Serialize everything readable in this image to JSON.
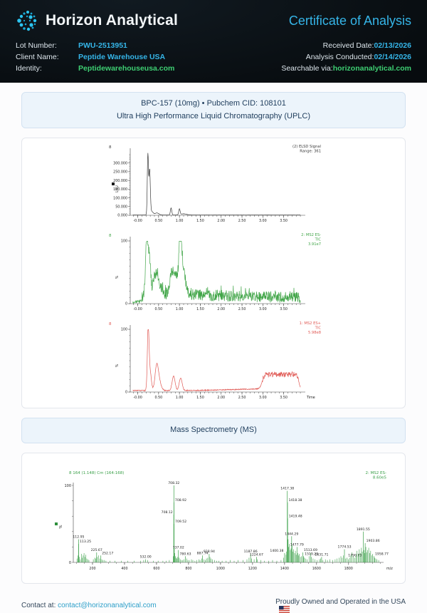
{
  "colors": {
    "cyan": "#35b5e8",
    "green": "#3ecf73",
    "card-bg": "#ecf4fb",
    "card-border": "#d3e2f1",
    "card-text": "#22405f",
    "panel-border": "#e3e6ec",
    "link": "#2d9fc9"
  },
  "header": {
    "brand": "Horizon Analytical",
    "title": "Certificate of Analysis",
    "fields_left": [
      {
        "label": "Lot Number:",
        "value": "PWU-2513951"
      },
      {
        "label": "Client Name:",
        "value": "Peptide Warehouse USA"
      },
      {
        "label": "Identity:",
        "value": "Peptidewarehouseusa.com"
      }
    ],
    "fields_right": [
      {
        "label": "Received Date:",
        "value": "02/13/2026"
      },
      {
        "label": "Analysis Conducted:",
        "value": "02/14/2026"
      },
      {
        "label": "Searchable via:",
        "value": "horizonanalytical.com"
      }
    ]
  },
  "sample_card": {
    "line1": "BPC-157 (10mg) • Pubchem CID: 108101",
    "line2": "Ultra High Performance Liquid Chromatography (UPLC)"
  },
  "ms_section_title": "Mass Spectrometry (MS)",
  "footer": {
    "contact_label": "Contact at:",
    "contact_link": "contact@horizonanalytical.com",
    "right_text": "Proudly Owned and Operated in the USA"
  },
  "chart_data": [
    {
      "type": "line",
      "id": "elsd",
      "run_label": "8",
      "title_right": [
        "(2) ELSD Signal",
        "Range: 361"
      ],
      "color": "#3a3a3a",
      "ylabel": "LSU",
      "marker_square": "#1a1a1a",
      "ymax": 360000,
      "y_tick_vals": [
        0,
        50000,
        100000,
        150000,
        200000,
        250000,
        300000
      ],
      "y_tick_labels": [
        "0.000",
        "50.000",
        "100.000",
        "150.000",
        "200.000",
        "250.000",
        "300.000"
      ],
      "y_minor_step": 10000,
      "x_range": [
        -0.18,
        3.95
      ],
      "x_tick_vals": [
        0,
        0.5,
        1,
        1.5,
        2,
        2.5,
        3,
        3.5
      ],
      "x_ticks": [
        "-0.00",
        "0.50",
        "1.00",
        "1.50",
        "2.00",
        "2.50",
        "3.00",
        "3.50"
      ],
      "peaks": [
        [
          0.243,
          345000,
          0.014
        ],
        [
          0.285,
          250000,
          0.016
        ],
        [
          0.325,
          22000,
          0.04
        ],
        [
          0.46,
          12000,
          0.045
        ],
        [
          0.8,
          41000,
          0.016
        ],
        [
          1.0,
          34000,
          0.016
        ],
        [
          1.1,
          7000,
          0.07
        ]
      ],
      "baseline": 1400,
      "noise": 700,
      "seed": 5
    },
    {
      "type": "line",
      "id": "tic_neg",
      "run_label": "8",
      "title_right": [
        "2: MS2 ES-",
        "TIC",
        "3.91e7"
      ],
      "color": "#42a649",
      "ylabel": "%",
      "ymax": 100,
      "y_tick_vals": [
        0,
        100
      ],
      "y_tick_labels": [
        "0",
        "100"
      ],
      "y_minor_step": 10,
      "x_range": [
        -0.18,
        3.95
      ],
      "x_tick_vals": [
        0,
        0.5,
        1,
        1.5,
        2,
        2.5,
        3,
        3.5
      ],
      "x_ticks": [
        "-0.00",
        "0.50",
        "1.00",
        "1.50",
        "2.00",
        "2.50",
        "3.00",
        "3.50"
      ],
      "peaks": [
        [
          0.22,
          92,
          0.03
        ],
        [
          0.285,
          50,
          0.028
        ],
        [
          0.4,
          30,
          0.035
        ],
        [
          0.47,
          28,
          0.03
        ],
        [
          0.56,
          12,
          0.04
        ],
        [
          0.83,
          38,
          0.05
        ],
        [
          0.95,
          30,
          0.04
        ],
        [
          1.01,
          78,
          0.022
        ],
        [
          1.055,
          52,
          0.03
        ],
        [
          1.12,
          25,
          0.05
        ]
      ],
      "base_floor": 3,
      "base_amp": 12,
      "base_decay": 0.2,
      "rise_t": 0.12,
      "end_t": 3.86,
      "noise": 9,
      "spike_p": 0.06,
      "spike_amp": 14,
      "seed": 99
    },
    {
      "type": "line",
      "id": "tic_pos",
      "run_label": "8",
      "title_right": [
        "1: MS2 ES+",
        "TIC",
        "5.98e8"
      ],
      "color": "#e05a55",
      "ylabel": "%",
      "ymax": 100,
      "y_tick_vals": [
        0,
        100
      ],
      "y_tick_labels": [
        "0",
        "100"
      ],
      "y_minor_step": 10,
      "x_range": [
        -0.18,
        3.95
      ],
      "x_tick_vals": [
        0,
        0.5,
        1,
        1.5,
        2,
        2.5,
        3,
        3.5
      ],
      "x_ticks": [
        "-0.00",
        "0.50",
        "1.00",
        "1.50",
        "2.00",
        "2.50",
        "3.00",
        "3.50"
      ],
      "x_end_label": "Time",
      "peaks": [
        [
          0.25,
          95,
          0.02
        ],
        [
          0.295,
          30,
          0.03
        ],
        [
          0.45,
          31,
          0.038
        ],
        [
          0.5,
          18,
          0.05
        ],
        [
          0.86,
          23,
          0.035
        ],
        [
          1.03,
          20,
          0.035
        ]
      ],
      "baseline": 2.5,
      "drift": 2.5,
      "noise": 0.8,
      "plateau": {
        "t0": 2.98,
        "t1": 3.86,
        "h": 23,
        "noise": 4
      },
      "seed": 31
    },
    {
      "type": "bar",
      "subtype": "mass-spectrum",
      "id": "ms",
      "title_left": "8 164 (1.148) Cm (164:168)",
      "title_right": [
        "2: MS2 ES-",
        "8.60e5"
      ],
      "color": "#3ba049",
      "ylabel": "%",
      "marker_square": "#2e8f3c",
      "xlabel": "m/z",
      "x_range": [
        80,
        2010
      ],
      "x_tick_vals": [
        200,
        400,
        600,
        800,
        1000,
        1200,
        1400,
        1600,
        1800
      ],
      "x_ticks": [
        "200",
        "400",
        "600",
        "800",
        "1000",
        "1200",
        "1400",
        "1600",
        "1800"
      ],
      "y_tick_labels": [
        "100",
        "0"
      ],
      "labeled_peaks": [
        {
          "m": 112.95,
          "h": 30,
          "label": "112.95",
          "a": "m"
        },
        {
          "m": 113.25,
          "h": 24,
          "label": "113.25",
          "a": "s"
        },
        {
          "m": 225.67,
          "h": 13,
          "label": "225.67",
          "a": "m"
        },
        {
          "m": 252.17,
          "h": 9,
          "label": "252.17",
          "a": "s"
        },
        {
          "m": 532.0,
          "h": 4,
          "label": "532.00",
          "a": "m"
        },
        {
          "m": 708.12,
          "h": 62,
          "label": "708.12",
          "a": "e"
        },
        {
          "m": 708.32,
          "h": 100,
          "label": "708.32",
          "a": "m"
        },
        {
          "m": 708.92,
          "h": 78,
          "label": "708.92",
          "a": "s"
        },
        {
          "m": 709.52,
          "h": 50,
          "label": "709.52",
          "a": "s"
        },
        {
          "m": 737.02,
          "h": 16,
          "label": "737.02",
          "a": "m"
        },
        {
          "m": 780.63,
          "h": 8,
          "label": "780.63",
          "a": "m"
        },
        {
          "m": 887.74,
          "h": 9,
          "label": "887.74",
          "a": "m"
        },
        {
          "m": 928.94,
          "h": 11,
          "label": "928.94",
          "a": "m"
        },
        {
          "m": 1187.86,
          "h": 11,
          "label": "1187.86",
          "a": "m"
        },
        {
          "m": 1224.67,
          "h": 7,
          "label": "1224.67",
          "a": "m"
        },
        {
          "m": 1400.38,
          "h": 12,
          "label": "1400.38",
          "a": "e"
        },
        {
          "m": 1417.38,
          "h": 93,
          "label": "1417.38",
          "a": "m"
        },
        {
          "m": 1418.38,
          "h": 78,
          "label": "1418.38",
          "a": "s"
        },
        {
          "m": 1419.48,
          "h": 57,
          "label": "1419.48",
          "a": "s"
        },
        {
          "m": 1444.29,
          "h": 34,
          "label": "1444.29",
          "a": "m"
        },
        {
          "m": 1477.79,
          "h": 20,
          "label": "1477.79",
          "a": "m"
        },
        {
          "m": 1513.69,
          "h": 13,
          "label": "1513.69",
          "a": "s"
        },
        {
          "m": 1519.29,
          "h": 8,
          "label": "1519.29",
          "a": "s"
        },
        {
          "m": 1631.71,
          "h": 7,
          "label": "1631.71",
          "a": "m"
        },
        {
          "m": 1774.53,
          "h": 17,
          "label": "1774.53",
          "a": "m"
        },
        {
          "m": 1790.73,
          "h": 6,
          "label": "1790.73",
          "a": "s"
        },
        {
          "m": 1891.55,
          "h": 40,
          "label": "1891.55",
          "a": "m"
        },
        {
          "m": 1903.86,
          "h": 25,
          "label": "1903.86",
          "a": "s"
        },
        {
          "m": 1958.77,
          "h": 8,
          "label": "1958.77",
          "a": "s"
        }
      ],
      "minor_peaks": [
        [
          103,
          5
        ],
        [
          108,
          9
        ],
        [
          118,
          7
        ],
        [
          124,
          4
        ],
        [
          131,
          11
        ],
        [
          136,
          6
        ],
        [
          142,
          9
        ],
        [
          147,
          12
        ],
        [
          152,
          7
        ],
        [
          158,
          10
        ],
        [
          164,
          5
        ],
        [
          171,
          4
        ],
        [
          178,
          3
        ],
        [
          205,
          4
        ],
        [
          214,
          6
        ],
        [
          221,
          5
        ],
        [
          230,
          7
        ],
        [
          238,
          9
        ],
        [
          245,
          5
        ],
        [
          258,
          4
        ],
        [
          266,
          3
        ],
        [
          275,
          3
        ],
        [
          284,
          2
        ],
        [
          310,
          2
        ],
        [
          340,
          2
        ],
        [
          380,
          2
        ],
        [
          420,
          2
        ],
        [
          460,
          2
        ],
        [
          500,
          2
        ],
        [
          520,
          3
        ],
        [
          545,
          3
        ],
        [
          580,
          2
        ],
        [
          610,
          2
        ],
        [
          640,
          2
        ],
        [
          660,
          2
        ],
        [
          680,
          3
        ],
        [
          704,
          8
        ],
        [
          711,
          20
        ],
        [
          714,
          12
        ],
        [
          718,
          8
        ],
        [
          722,
          6
        ],
        [
          728,
          5
        ],
        [
          733,
          7
        ],
        [
          742,
          6
        ],
        [
          748,
          4
        ],
        [
          756,
          3
        ],
        [
          764,
          3
        ],
        [
          772,
          4
        ],
        [
          788,
          5
        ],
        [
          796,
          3
        ],
        [
          805,
          3
        ],
        [
          818,
          4
        ],
        [
          827,
          3
        ],
        [
          840,
          2
        ],
        [
          852,
          3
        ],
        [
          865,
          4
        ],
        [
          872,
          3
        ],
        [
          883,
          5
        ],
        [
          895,
          4
        ],
        [
          905,
          3
        ],
        [
          912,
          5
        ],
        [
          920,
          6
        ],
        [
          934,
          7
        ],
        [
          941,
          5
        ],
        [
          950,
          4
        ],
        [
          963,
          3
        ],
        [
          975,
          2
        ],
        [
          990,
          2
        ],
        [
          1010,
          2
        ],
        [
          1035,
          2
        ],
        [
          1060,
          3
        ],
        [
          1085,
          2
        ],
        [
          1110,
          3
        ],
        [
          1140,
          3
        ],
        [
          1165,
          4
        ],
        [
          1178,
          6
        ],
        [
          1195,
          5
        ],
        [
          1210,
          4
        ],
        [
          1230,
          4
        ],
        [
          1252,
          3
        ],
        [
          1275,
          2
        ],
        [
          1300,
          2
        ],
        [
          1325,
          3
        ],
        [
          1352,
          2
        ],
        [
          1378,
          3
        ],
        [
          1395,
          6
        ],
        [
          1409,
          10
        ],
        [
          1412,
          14
        ],
        [
          1422,
          30
        ],
        [
          1426,
          20
        ],
        [
          1431,
          24
        ],
        [
          1436,
          16
        ],
        [
          1441,
          18
        ],
        [
          1448,
          22
        ],
        [
          1452,
          14
        ],
        [
          1457,
          17
        ],
        [
          1463,
          12
        ],
        [
          1468,
          15
        ],
        [
          1473,
          10
        ],
        [
          1482,
          12
        ],
        [
          1487,
          9
        ],
        [
          1493,
          11
        ],
        [
          1499,
          7
        ],
        [
          1506,
          8
        ],
        [
          1524,
          6
        ],
        [
          1532,
          5
        ],
        [
          1540,
          4
        ],
        [
          1555,
          8
        ],
        [
          1562,
          12
        ],
        [
          1568,
          7
        ],
        [
          1578,
          5
        ],
        [
          1590,
          4
        ],
        [
          1604,
          3
        ],
        [
          1618,
          4
        ],
        [
          1626,
          5
        ],
        [
          1640,
          3
        ],
        [
          1655,
          4
        ],
        [
          1668,
          3
        ],
        [
          1684,
          4
        ],
        [
          1700,
          3
        ],
        [
          1716,
          4
        ],
        [
          1728,
          5
        ],
        [
          1742,
          6
        ],
        [
          1752,
          8
        ],
        [
          1760,
          6
        ],
        [
          1768,
          9
        ],
        [
          1782,
          5
        ],
        [
          1798,
          4
        ],
        [
          1806,
          6
        ],
        [
          1814,
          9
        ],
        [
          1822,
          13
        ],
        [
          1830,
          8
        ],
        [
          1838,
          6
        ],
        [
          1846,
          10
        ],
        [
          1853,
          15
        ],
        [
          1860,
          11
        ],
        [
          1867,
          17
        ],
        [
          1873,
          12
        ],
        [
          1880,
          19
        ],
        [
          1886,
          14
        ],
        [
          1896,
          16
        ],
        [
          1900,
          12
        ],
        [
          1908,
          20
        ],
        [
          1913,
          13
        ],
        [
          1919,
          16
        ],
        [
          1926,
          19
        ],
        [
          1932,
          12
        ],
        [
          1938,
          15
        ],
        [
          1944,
          9
        ],
        [
          1951,
          11
        ],
        [
          1963,
          6
        ],
        [
          1970,
          5
        ],
        [
          1978,
          4
        ],
        [
          1988,
          3
        ]
      ]
    }
  ]
}
